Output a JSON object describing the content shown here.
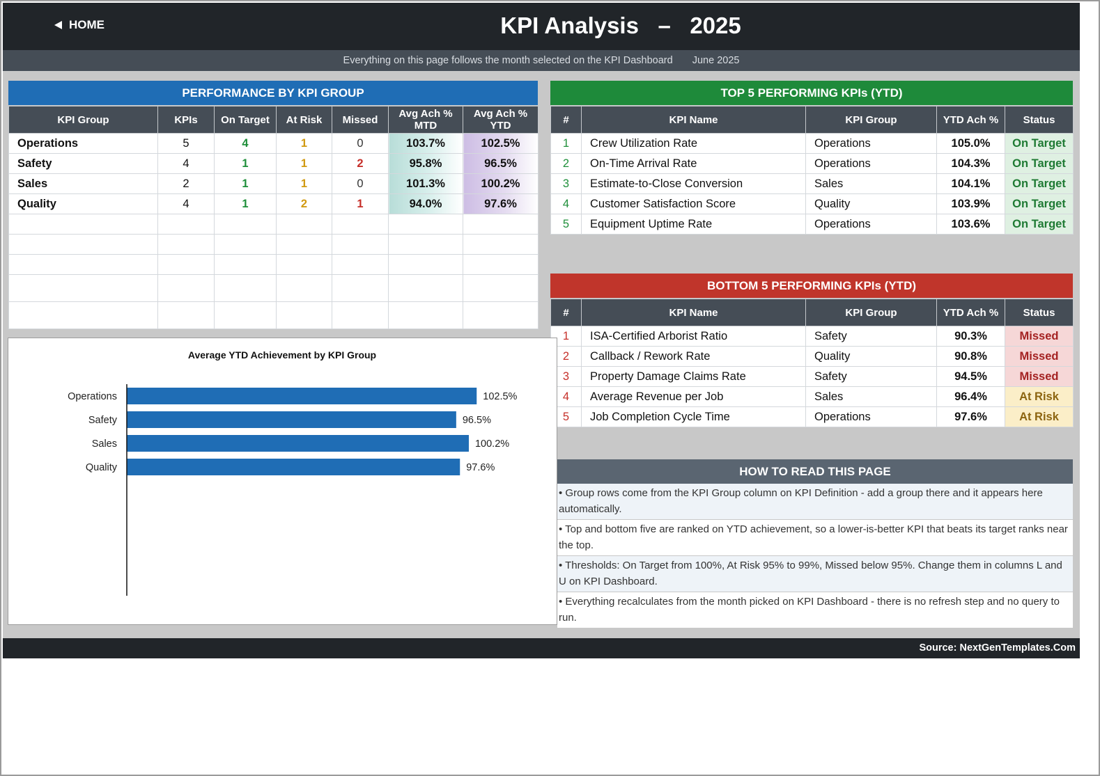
{
  "header": {
    "home_label": "HOME",
    "title": "KPI Analysis   –   2025",
    "subtitle": "Everything on this page follows the month selected on the KPI Dashboard",
    "month": "June 2025"
  },
  "performance_by_group": {
    "title": "PERFORMANCE BY KPI GROUP",
    "columns": [
      "KPI Group",
      "KPIs",
      "On Target",
      "At Risk",
      "Missed",
      "Avg Ach % MTD",
      "Avg Ach % YTD"
    ],
    "rows": [
      {
        "group": "Operations",
        "kpis": "5",
        "on_target": "4",
        "at_risk": "1",
        "missed": "0",
        "mtd": "103.7%",
        "ytd": "102.5%"
      },
      {
        "group": "Safety",
        "kpis": "4",
        "on_target": "1",
        "at_risk": "1",
        "missed": "2",
        "mtd": "95.8%",
        "ytd": "96.5%"
      },
      {
        "group": "Sales",
        "kpis": "2",
        "on_target": "1",
        "at_risk": "1",
        "missed": "0",
        "mtd": "101.3%",
        "ytd": "100.2%"
      },
      {
        "group": "Quality",
        "kpis": "4",
        "on_target": "1",
        "at_risk": "2",
        "missed": "1",
        "mtd": "94.0%",
        "ytd": "97.6%"
      }
    ]
  },
  "top5": {
    "title": "TOP 5 PERFORMING KPIs  (YTD)",
    "columns": [
      "#",
      "KPI Name",
      "KPI Group",
      "YTD Ach %",
      "Status"
    ],
    "rows": [
      {
        "rank": "1",
        "name": "Crew Utilization Rate",
        "group": "Operations",
        "ach": "105.0%",
        "status": "On Target"
      },
      {
        "rank": "2",
        "name": "On-Time Arrival Rate",
        "group": "Operations",
        "ach": "104.3%",
        "status": "On Target"
      },
      {
        "rank": "3",
        "name": "Estimate-to-Close Conversion",
        "group": "Sales",
        "ach": "104.1%",
        "status": "On Target"
      },
      {
        "rank": "4",
        "name": "Customer Satisfaction Score",
        "group": "Quality",
        "ach": "103.9%",
        "status": "On Target"
      },
      {
        "rank": "5",
        "name": "Equipment Uptime Rate",
        "group": "Operations",
        "ach": "103.6%",
        "status": "On Target"
      }
    ]
  },
  "bottom5": {
    "title": "BOTTOM 5 PERFORMING KPIs  (YTD)",
    "columns": [
      "#",
      "KPI Name",
      "KPI Group",
      "YTD Ach %",
      "Status"
    ],
    "rows": [
      {
        "rank": "1",
        "name": "ISA-Certified Arborist Ratio",
        "group": "Safety",
        "ach": "90.3%",
        "status": "Missed"
      },
      {
        "rank": "2",
        "name": "Callback / Rework Rate",
        "group": "Quality",
        "ach": "90.8%",
        "status": "Missed"
      },
      {
        "rank": "3",
        "name": "Property Damage Claims Rate",
        "group": "Safety",
        "ach": "94.5%",
        "status": "Missed"
      },
      {
        "rank": "4",
        "name": "Average Revenue per Job",
        "group": "Sales",
        "ach": "96.4%",
        "status": "At Risk"
      },
      {
        "rank": "5",
        "name": "Job Completion Cycle Time",
        "group": "Operations",
        "ach": "97.6%",
        "status": "At Risk"
      }
    ]
  },
  "howto": {
    "title": "HOW TO READ THIS PAGE",
    "items": [
      "•  Group rows come from the KPI Group column on KPI Definition - add a group there and it appears here automatically.",
      "•  Top and bottom five are ranked on YTD achievement, so a lower-is-better KPI that beats its target ranks near the top.",
      "•  Thresholds: On Target from 100%, At Risk 95% to 99%, Missed below 95%. Change them in columns L and U on KPI Dashboard.",
      "•  Everything recalculates from the month picked on KPI Dashboard - there is no refresh step and no query to run."
    ]
  },
  "footer": {
    "source": "Source: NextGenTemplates.Com"
  },
  "colors": {
    "titlebar": "#212529",
    "group_header": "#1f6db5",
    "top_header": "#1e8a3a",
    "bottom_header": "#c0352b",
    "howto_header": "#5a6571",
    "bar": "#1f6db5"
  },
  "chart_data": {
    "type": "bar",
    "orientation": "horizontal",
    "title": "Average YTD Achievement by KPI Group",
    "categories": [
      "Operations",
      "Safety",
      "Sales",
      "Quality"
    ],
    "values": [
      102.5,
      96.5,
      100.2,
      97.6
    ],
    "value_labels": [
      "102.5%",
      "96.5%",
      "100.2%",
      "97.6%"
    ],
    "xlim": [
      0,
      110
    ],
    "grid": false,
    "legend": "none"
  }
}
